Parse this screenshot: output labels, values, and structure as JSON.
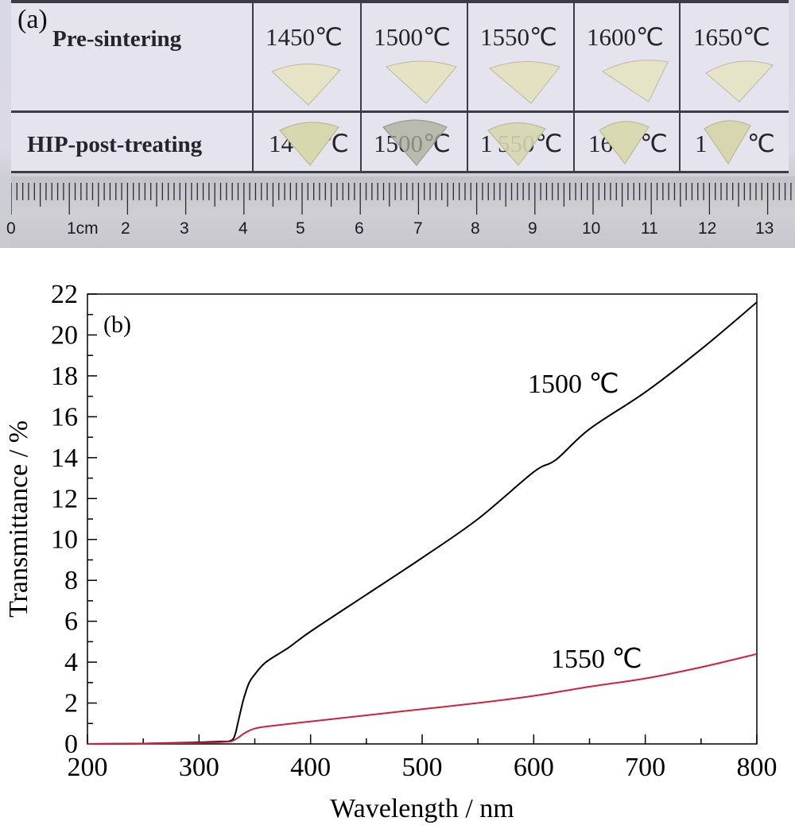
{
  "panel_a": {
    "label": "(a)",
    "row_labels": [
      "Pre-sintering",
      "HIP-post-treating"
    ],
    "pre_sintering_temps": [
      "1450℃",
      "1500℃",
      "1550℃",
      "1600℃",
      "1650℃"
    ],
    "hip_temps_visible": [
      "14",
      "℃",
      "1500℃",
      "1",
      "550℃",
      "16",
      "℃",
      "1",
      "℃"
    ],
    "ruler": {
      "labels": [
        "0",
        "1cm",
        "2",
        "3",
        "4",
        "5",
        "6",
        "7",
        "8",
        "9",
        "10",
        "11",
        "12",
        "13"
      ]
    }
  },
  "panel_b_label": "(b)",
  "chart_data": {
    "type": "line",
    "xlabel": "Wavelength / nm",
    "ylabel": "Transmittance / %",
    "xlim": [
      200,
      800
    ],
    "ylim": [
      0,
      22
    ],
    "xticks": [
      200,
      300,
      400,
      500,
      600,
      700,
      800
    ],
    "yticks": [
      0,
      2,
      4,
      6,
      8,
      10,
      12,
      14,
      16,
      18,
      20,
      22
    ],
    "grid": false,
    "series": [
      {
        "name": "1500 ℃",
        "color": "#000000",
        "x": [
          200,
          250,
          300,
          320,
          328,
          332,
          336,
          340,
          345,
          350,
          360,
          380,
          400,
          450,
          500,
          550,
          600,
          620,
          650,
          700,
          750,
          800
        ],
        "y": [
          0.0,
          0.02,
          0.08,
          0.12,
          0.15,
          0.4,
          1.3,
          2.2,
          3.0,
          3.4,
          4.0,
          4.7,
          5.5,
          7.3,
          9.1,
          11.0,
          13.3,
          13.9,
          15.4,
          17.2,
          19.3,
          21.6
        ]
      },
      {
        "name": "1550 ℃",
        "color": "#d41f3a",
        "x": [
          200,
          250,
          300,
          325,
          330,
          335,
          340,
          345,
          350,
          360,
          400,
          450,
          500,
          550,
          600,
          650,
          700,
          750,
          800
        ],
        "y": [
          0.0,
          0.02,
          0.05,
          0.1,
          0.15,
          0.3,
          0.5,
          0.65,
          0.75,
          0.85,
          1.1,
          1.4,
          1.7,
          2.0,
          2.35,
          2.8,
          3.2,
          3.75,
          4.4
        ]
      }
    ]
  }
}
